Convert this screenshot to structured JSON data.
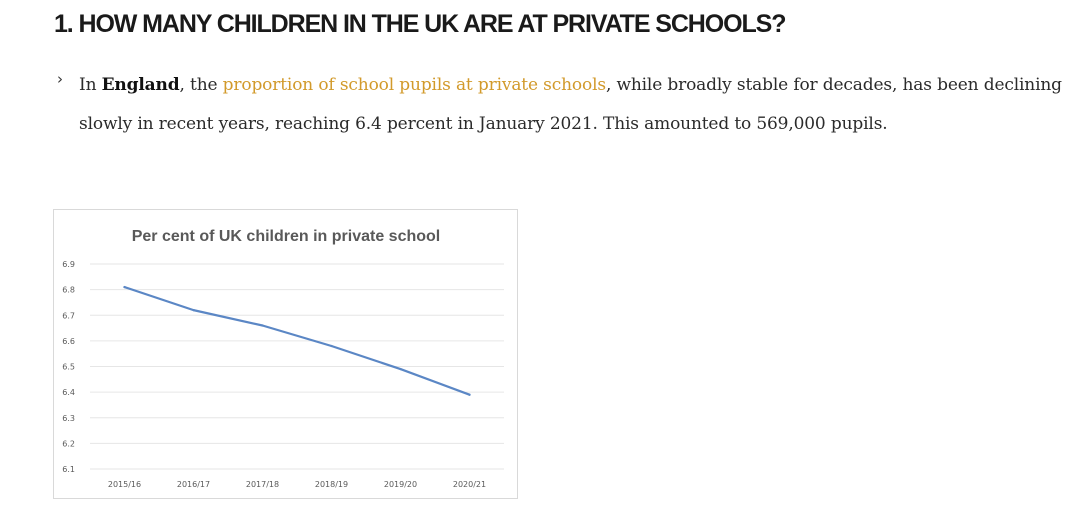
{
  "heading": "1. HOW MANY CHILDREN IN THE UK ARE AT PRIVATE SCHOOLS?",
  "bullet_icon": "chevron-right-icon",
  "paragraph": {
    "text_1": "In ",
    "bold": "England",
    "text_2": ", the ",
    "link": "proportion of school pupils at private schools",
    "text_3": ", while broadly stable for decades, has been declining slowly in recent years, reaching 6.4 percent in January 2021. This amounted to 569,000 pupils."
  },
  "colors": {
    "link": "#d29a2b",
    "line": "#5b87c5",
    "grid": "#e6e6e6"
  },
  "chart_data": {
    "type": "line",
    "title": "Per cent of UK children in private school",
    "xlabel": "",
    "ylabel": "",
    "categories": [
      "2015/16",
      "2016/17",
      "2017/18",
      "2018/19",
      "2019/20",
      "2020/21"
    ],
    "values": [
      6.81,
      6.72,
      6.66,
      6.58,
      6.49,
      6.39
    ],
    "y_ticks": [
      "6.1",
      "6.2",
      "6.3",
      "6.4",
      "6.5",
      "6.6",
      "6.7",
      "6.8",
      "6.9"
    ],
    "ylim": [
      6.1,
      6.9
    ],
    "grid": true,
    "legend": "none"
  }
}
